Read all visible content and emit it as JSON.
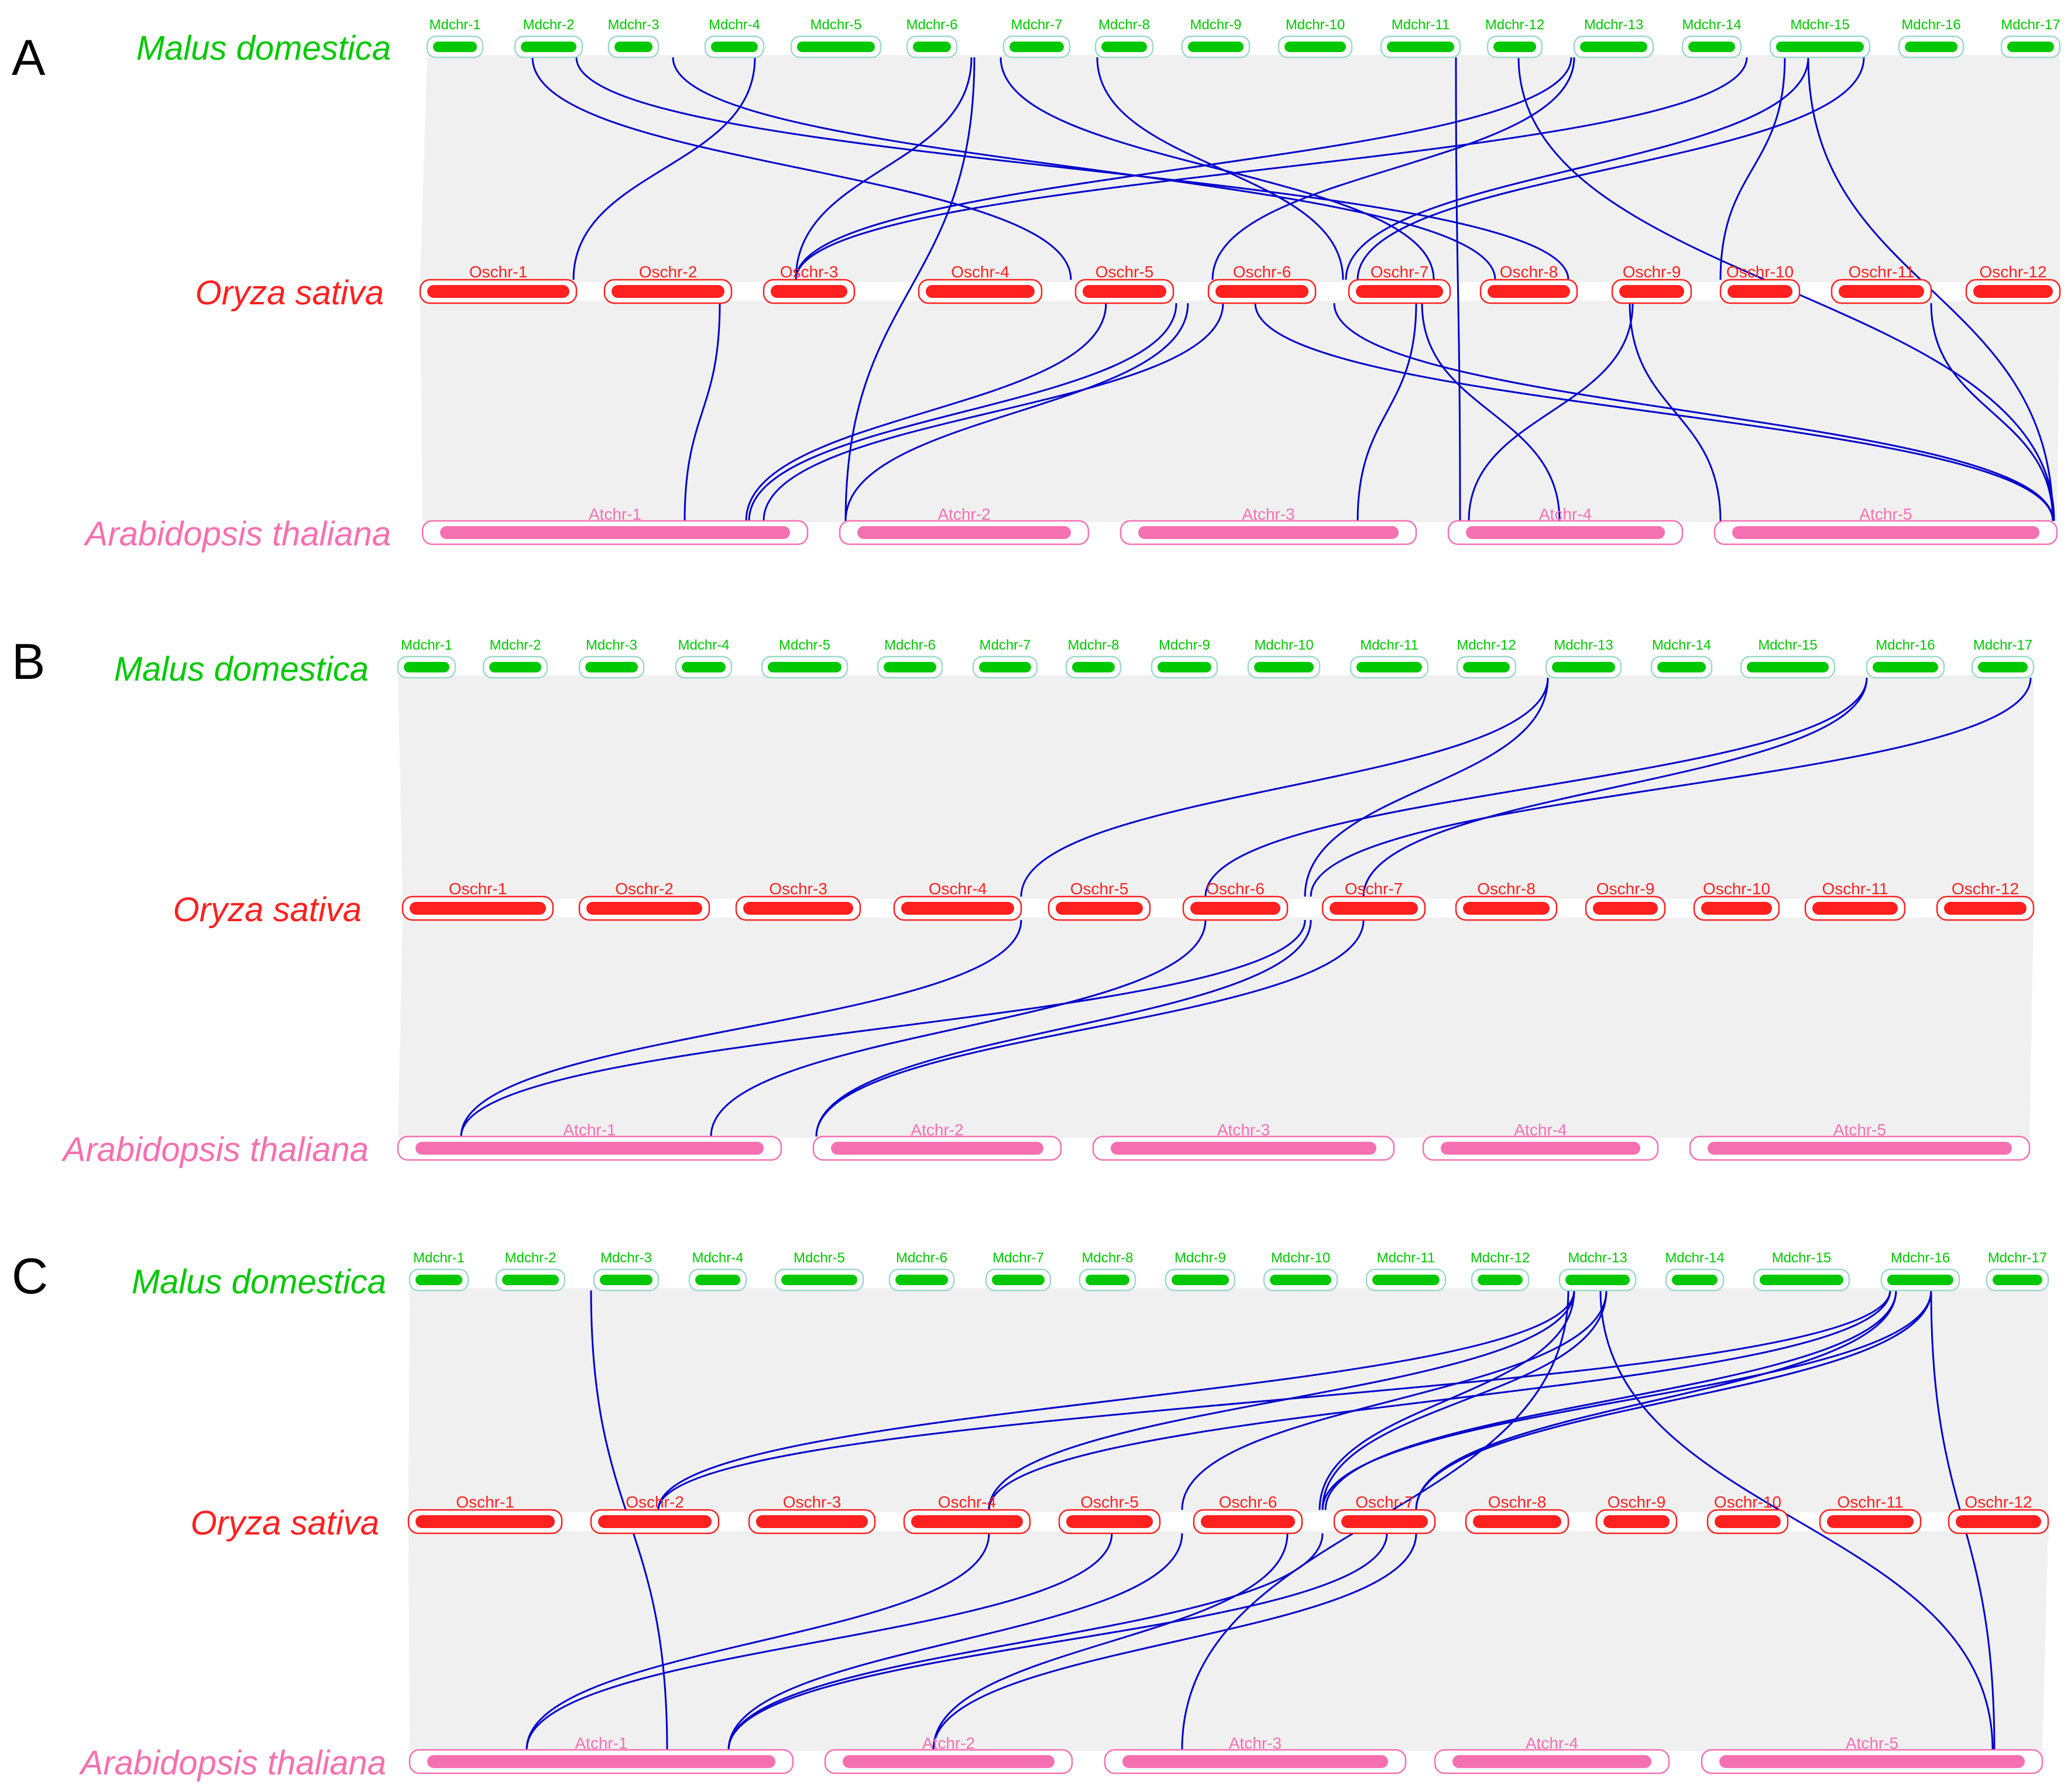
{
  "species": {
    "malus": "Malus domestica",
    "oryza": "Oryza sativa",
    "arabidopsis": "Arabidopsis thaliana"
  },
  "colors": {
    "malus": "#00c800",
    "oryza": "#ff2020",
    "arabidopsis": "#f570b0",
    "link": "#0000cc",
    "background_links": "#dedede"
  },
  "panels": [
    {
      "id": "A",
      "malus": [
        "Mdchr-1",
        "Mdchr-2",
        "Mdchr-3",
        "Mdchr-4",
        "Mdchr-5",
        "Mdchr-6",
        "Mdchr-7",
        "Mdchr-8",
        "Mdchr-9",
        "Mdchr-10",
        "Mdchr-11",
        "Mdchr-12",
        "Mdchr-13",
        "Mdchr-14",
        "Mdchr-15",
        "Mdchr-16",
        "Mdchr-17"
      ],
      "oryza": [
        "Oschr-1",
        "Oschr-2",
        "Oschr-3",
        "Oschr-4",
        "Oschr-5",
        "Oschr-6",
        "Oschr-7",
        "Oschr-8",
        "Oschr-9",
        "Oschr-10",
        "Oschr-11",
        "Oschr-12"
      ],
      "arabidopsis": [
        "Atchr-1",
        "Atchr-2",
        "Atchr-3",
        "Atchr-4",
        "Atchr-5"
      ]
    },
    {
      "id": "B",
      "malus": [
        "Mdchr-1",
        "Mdchr-2",
        "Mdchr-3",
        "Mdchr-4",
        "Mdchr-5",
        "Mdchr-6",
        "Mdchr-7",
        "Mdchr-8",
        "Mdchr-9",
        "Mdchr-10",
        "Mdchr-11",
        "Mdchr-12",
        "Mdchr-13",
        "Mdchr-14",
        "Mdchr-15",
        "Mdchr-16",
        "Mdchr-17"
      ],
      "oryza": [
        "Oschr-1",
        "Oschr-2",
        "Oschr-3",
        "Oschr-4",
        "Oschr-5",
        "Oschr-6",
        "Oschr-7",
        "Oschr-8",
        "Oschr-9",
        "Oschr-10",
        "Oschr-11",
        "Oschr-12"
      ],
      "arabidopsis": [
        "Atchr-1",
        "Atchr-2",
        "Atchr-3",
        "Atchr-4",
        "Atchr-5"
      ]
    },
    {
      "id": "C",
      "malus": [
        "Mdchr-1",
        "Mdchr-2",
        "Mdchr-3",
        "Mdchr-4",
        "Mdchr-5",
        "Mdchr-6",
        "Mdchr-7",
        "Mdchr-8",
        "Mdchr-9",
        "Mdchr-10",
        "Mdchr-11",
        "Mdchr-12",
        "Mdchr-13",
        "Mdchr-14",
        "Mdchr-15",
        "Mdchr-16",
        "Mdchr-17"
      ],
      "oryza": [
        "Oschr-1",
        "Oschr-2",
        "Oschr-3",
        "Oschr-4",
        "Oschr-5",
        "Oschr-6",
        "Oschr-7",
        "Oschr-8",
        "Oschr-9",
        "Oschr-10",
        "Oschr-11",
        "Oschr-12"
      ],
      "arabidopsis": [
        "Atchr-1",
        "Atchr-2",
        "Atchr-3",
        "Atchr-4",
        "Atchr-5"
      ]
    }
  ]
}
